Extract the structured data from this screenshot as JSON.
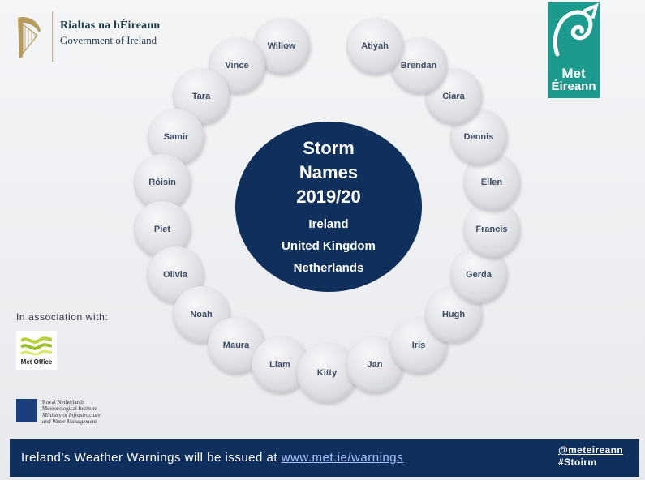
{
  "header": {
    "gov_line1": "Rialtas na hÉireann",
    "gov_line2": "Government of Ireland",
    "met_logo_line1": "Met",
    "met_logo_line2": "Éireann"
  },
  "storm_names": [
    "Willow",
    "Vince",
    "Tara",
    "Samir",
    "Róisín",
    "Piet",
    "Olivia",
    "Noah",
    "Maura",
    "Liam",
    "Kitty",
    "Jan",
    "Iris",
    "Hugh",
    "Gerda",
    "Francis",
    "Ellen",
    "Dennis",
    "Ciara",
    "Brendan",
    "Atiyah"
  ],
  "center": {
    "title_line1": "Storm",
    "title_line2": "Names",
    "title_line3": "2019/20",
    "country1": "Ireland",
    "country2": "United Kingdom",
    "country3": "Netherlands"
  },
  "association": {
    "label": "In association with:",
    "met_office": "Met Office",
    "knmi_line1": "Royal Netherlands",
    "knmi_line2": "Meteorological Institute",
    "knmi_line3": "Ministry of Infrastructure",
    "knmi_line4": "and Water Management"
  },
  "footer": {
    "warning_text": "Ireland’s Weather Warnings will be issued at",
    "warning_link": "www.met.ie/warnings",
    "handle": "@meteireann",
    "hashtag": "#Stoirm"
  },
  "colors": {
    "navy": "#0f2f5c",
    "met_eireann_teal": "#1c9a8d",
    "bubble_text": "#3e4a63"
  }
}
